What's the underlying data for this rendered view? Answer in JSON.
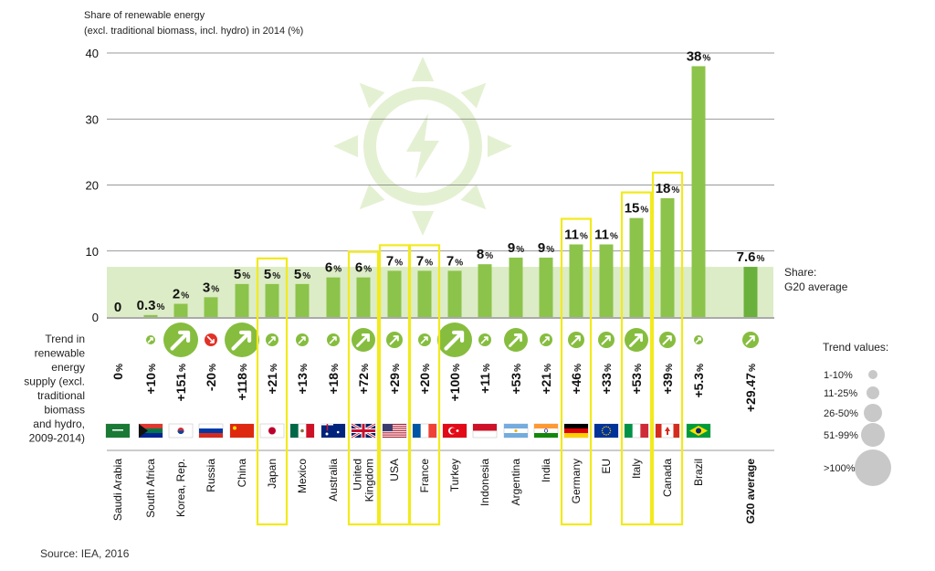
{
  "chart_data": {
    "type": "bar",
    "title": "Share of renewable energy (excl. traditional biomass, incl. hydro) in 2014 (%)",
    "title_line1": "Share of renewable energy",
    "title_line2": "(excl. traditional biomass, incl. hydro) in 2014 (%)",
    "ylim": [
      0,
      40
    ],
    "yticks": [
      0,
      10,
      20,
      30,
      40
    ],
    "grid": true,
    "categories": [
      "Saudi Arabia",
      "South Africa",
      "Korea, Rep.",
      "Russia",
      "China",
      "Japan",
      "Mexico",
      "Australia",
      "United Kingdom",
      "USA",
      "France",
      "Turkey",
      "Indonesia",
      "Argentina",
      "India",
      "Germany",
      "EU",
      "Italy",
      "Canada",
      "Brazil",
      "G20 average"
    ],
    "category_lines": [
      [
        "Saudi Arabia"
      ],
      [
        "South Africa"
      ],
      [
        "Korea, Rep."
      ],
      [
        "Russia"
      ],
      [
        "China"
      ],
      [
        "Japan"
      ],
      [
        "Mexico"
      ],
      [
        "Australia"
      ],
      [
        "United",
        "Kingdom"
      ],
      [
        "USA"
      ],
      [
        "France"
      ],
      [
        "Turkey"
      ],
      [
        "Indonesia"
      ],
      [
        "Argentina"
      ],
      [
        "India"
      ],
      [
        "Germany"
      ],
      [
        "EU"
      ],
      [
        "Italy"
      ],
      [
        "Canada"
      ],
      [
        "Brazil"
      ],
      [
        "G20 average"
      ]
    ],
    "values": [
      0,
      0.3,
      2,
      3,
      5,
      5,
      5,
      6,
      6,
      7,
      7,
      7,
      8,
      9,
      9,
      11,
      11,
      15,
      18,
      38,
      7.6
    ],
    "value_labels": [
      "0",
      "0.3",
      "2",
      "3",
      "5",
      "5",
      "5",
      "6",
      "6",
      "7",
      "7",
      "7",
      "8",
      "9",
      "9",
      "11",
      "11",
      "15",
      "18",
      "38",
      "7.6"
    ],
    "value_suffix": "%",
    "highlighted": [
      "Japan",
      "United Kingdom",
      "USA",
      "France",
      "Germany",
      "Italy",
      "Canada"
    ],
    "bold_category": "G20 average",
    "g20_average_band": 7.6,
    "g20_band_label_line1": "Share:",
    "g20_band_label_line2": "G20 average",
    "trend_label_lines": [
      "Trend in",
      "renewable",
      "energy",
      "supply (excl.",
      "traditional",
      "biomass",
      "and hydro,",
      "2009-2014)"
    ],
    "trend_values": [
      0,
      10,
      151,
      -20,
      118,
      21,
      13,
      18,
      72,
      29,
      20,
      100,
      11,
      53,
      21,
      46,
      33,
      53,
      39,
      5.3,
      29.47
    ],
    "trend_labels": [
      "0",
      "+10",
      "+151",
      "-20",
      "+118",
      "+21",
      "+13",
      "+18",
      "+72",
      "+29",
      "+20",
      "+100",
      "+11",
      "+53",
      "+21",
      "+46",
      "+33",
      "+53",
      "+39",
      "+5.3",
      "+29.47"
    ],
    "trend_suffix": "%",
    "legend_title": "Trend values:",
    "legend_items": [
      "1-10%",
      "11-25%",
      "26-50%",
      "51-99%",
      ">100%"
    ],
    "source": "Source: IEA, 2016"
  },
  "colors": {
    "bar": "#8cc34a",
    "bar_g20": "#6ab03c",
    "band": "#dcecc6",
    "highlight": "#f2ea1c",
    "trend_up": "#86bd3f",
    "trend_down": "#e23127",
    "grid": "#777777",
    "legend_circle": "#c8c8c8",
    "sun": "#e4f0d2"
  },
  "flags": [
    "saudi-arabia",
    "south-africa",
    "korea",
    "russia",
    "china",
    "japan",
    "mexico",
    "australia",
    "united-kingdom",
    "usa",
    "france",
    "turkey",
    "indonesia",
    "argentina",
    "india",
    "germany",
    "eu",
    "italy",
    "canada",
    "brazil"
  ]
}
